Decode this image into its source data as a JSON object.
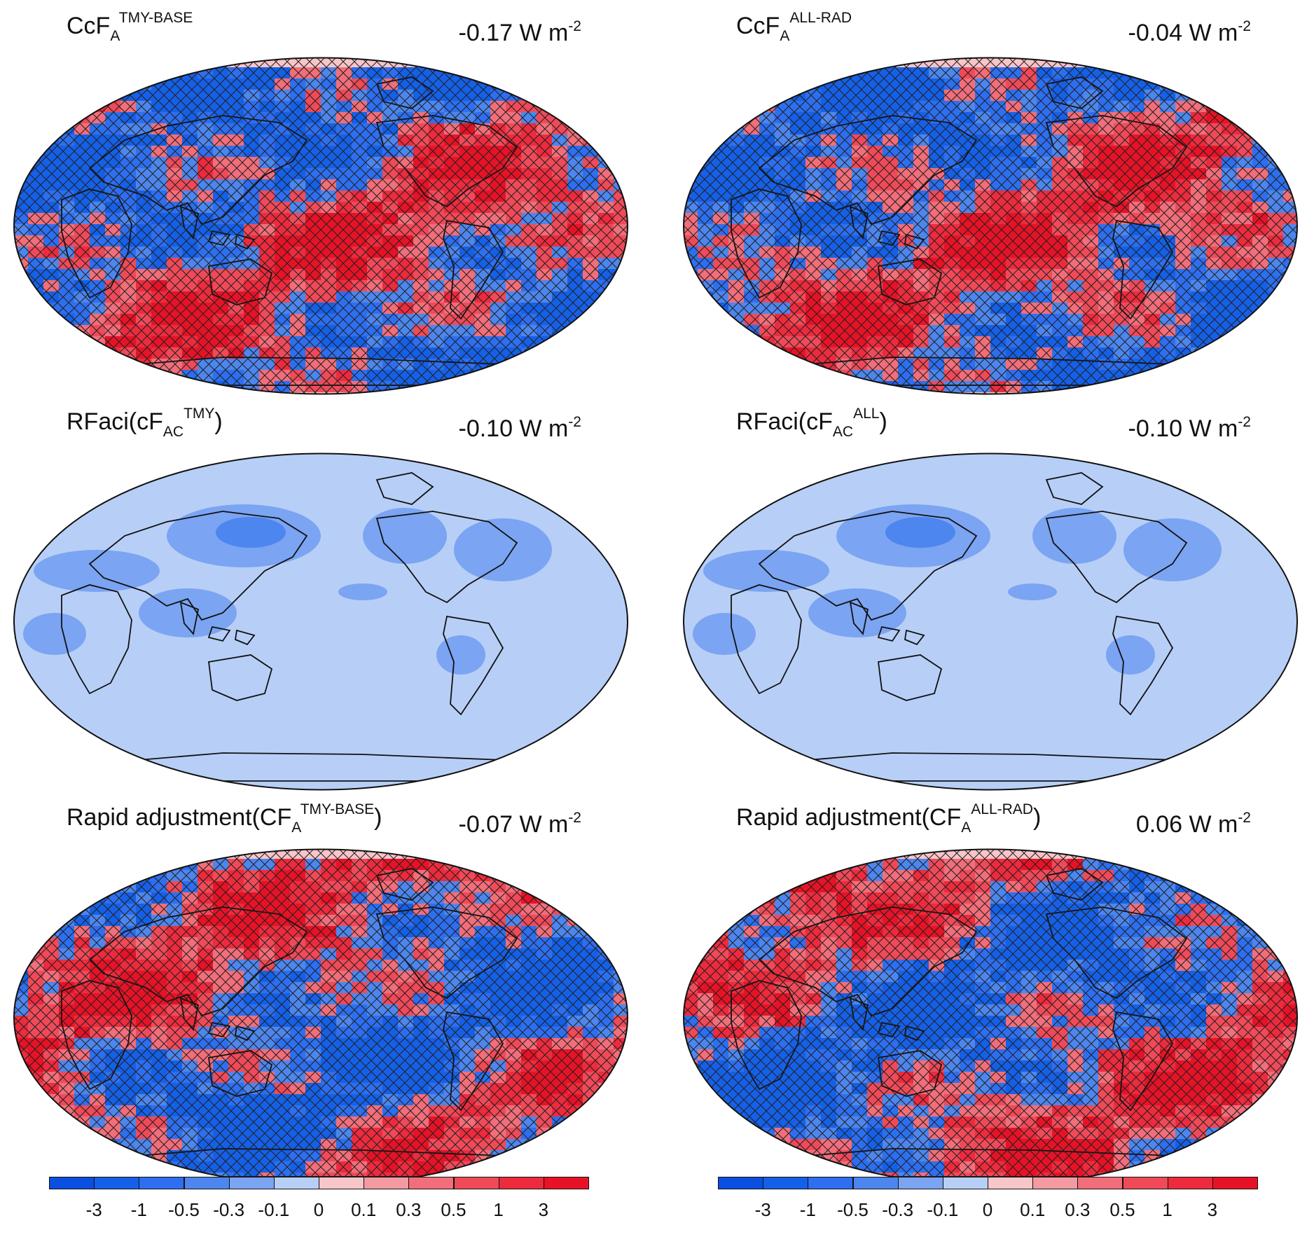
{
  "panels": [
    {
      "id": "ccfa-tmy-base",
      "title_main": "CcF",
      "title_sub": "A",
      "title_sup": "TMY-BASE",
      "title_tail": "",
      "value": "-0.17 W m",
      "value_sup": "-2",
      "style": "noisy"
    },
    {
      "id": "ccfa-all-rad",
      "title_main": "CcF",
      "title_sub": "A",
      "title_sup": "ALL-RAD",
      "title_tail": "",
      "value": "-0.04 W m",
      "value_sup": "-2",
      "style": "noisy"
    },
    {
      "id": "rfaci-tmy",
      "title_main": "RFaci(cF",
      "title_sub": "AC",
      "title_sup": "TMY",
      "title_tail": ")",
      "value": "-0.10 W m",
      "value_sup": "-2",
      "style": "smooth"
    },
    {
      "id": "rfaci-all",
      "title_main": "RFaci(cF",
      "title_sub": "AC",
      "title_sup": "ALL",
      "title_tail": ")",
      "value": "-0.10 W m",
      "value_sup": "-2",
      "style": "smooth"
    },
    {
      "id": "rapid-tmy-base",
      "title_main": "Rapid adjustment(CF",
      "title_sub": "A",
      "title_sup": "TMY-BASE",
      "title_tail": ")",
      "value": "-0.07 W m",
      "value_sup": "-2",
      "style": "noisy"
    },
    {
      "id": "rapid-all-rad",
      "title_main": "Rapid adjustment(CF",
      "title_sub": "A",
      "title_sup": "ALL-RAD",
      "title_tail": ")",
      "value": "0.06 W m",
      "value_sup": "-2",
      "style": "noisy"
    }
  ],
  "colorbar": {
    "labels": [
      "-3",
      "-1",
      "-0.5",
      "-0.3",
      "-0.1",
      "0",
      "0.1",
      "0.3",
      "0.5",
      "1",
      "3"
    ],
    "colors": [
      "#0a4fe0",
      "#1560e8",
      "#2d6ff0",
      "#4d86ee",
      "#7ba4f2",
      "#b7cff7",
      "#f8c5c9",
      "#f49aa2",
      "#f26e7a",
      "#f04a59",
      "#ee2b3d",
      "#e81226"
    ]
  }
}
